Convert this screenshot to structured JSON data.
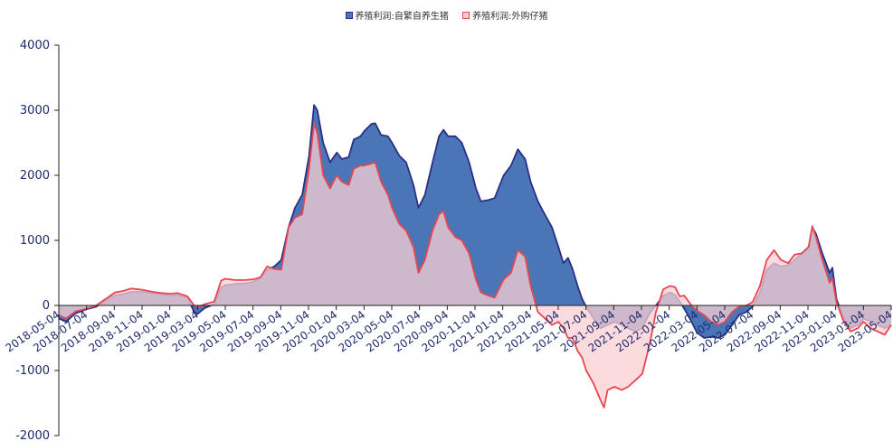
{
  "chart_data": {
    "type": "area",
    "ylim": [
      -2000,
      4000
    ],
    "yticks": [
      -2000,
      -1000,
      0,
      1000,
      2000,
      3000,
      4000
    ],
    "legend_position": "top",
    "grid": false,
    "x_tick_labels": [
      "2018-05-04",
      "2018-07-04",
      "2018-09-04",
      "2018-11-04",
      "2019-01-04",
      "2019-03-04",
      "2019-05-04",
      "2019-07-04",
      "2019-09-04",
      "2019-11-04",
      "2020-01-04",
      "2020-03-04",
      "2020-05-04",
      "2020-07-04",
      "2020-09-04",
      "2020-11-04",
      "2021-01-04",
      "2021-03-04",
      "2021-05-04",
      "2021-07-04",
      "2021-09-04",
      "2021-11-04",
      "2022-01-04",
      "2022-03-04",
      "2022-05-04",
      "2022-07-04",
      "2022-09-04",
      "2022-11-04",
      "2023-01-04",
      "2023-03-04",
      "2023-05-04"
    ],
    "x_start": "2018-05-04",
    "x_end": "2023-05-04",
    "series": [
      {
        "name": "养殖利润:自繁自养生猪",
        "color": "#4a76b8",
        "stroke": "#2a2f86",
        "points": [
          [
            "2018-05-04",
            -200
          ],
          [
            "2018-05-20",
            -250
          ],
          [
            "2018-06-10",
            -120
          ],
          [
            "2018-07-04",
            -60
          ],
          [
            "2018-07-25",
            -20
          ],
          [
            "2018-08-15",
            80
          ],
          [
            "2018-09-04",
            160
          ],
          [
            "2018-09-20",
            170
          ],
          [
            "2018-10-10",
            210
          ],
          [
            "2018-11-04",
            210
          ],
          [
            "2018-11-25",
            190
          ],
          [
            "2018-12-15",
            170
          ],
          [
            "2019-01-04",
            150
          ],
          [
            "2019-01-20",
            160
          ],
          [
            "2019-02-10",
            120
          ],
          [
            "2019-02-25",
            -100
          ],
          [
            "2019-03-04",
            -130
          ],
          [
            "2019-03-20",
            -40
          ],
          [
            "2019-04-10",
            20
          ],
          [
            "2019-04-25",
            280
          ],
          [
            "2019-05-04",
            310
          ],
          [
            "2019-05-25",
            330
          ],
          [
            "2019-06-15",
            340
          ],
          [
            "2019-07-04",
            360
          ],
          [
            "2019-07-20",
            420
          ],
          [
            "2019-08-04",
            550
          ],
          [
            "2019-08-20",
            600
          ],
          [
            "2019-09-04",
            700
          ],
          [
            "2019-09-20",
            1200
          ],
          [
            "2019-10-04",
            1500
          ],
          [
            "2019-10-20",
            1700
          ],
          [
            "2019-11-04",
            2300
          ],
          [
            "2019-11-15",
            3080
          ],
          [
            "2019-11-22",
            3000
          ],
          [
            "2019-12-05",
            2500
          ],
          [
            "2019-12-20",
            2200
          ],
          [
            "2020-01-04",
            2350
          ],
          [
            "2020-01-15",
            2250
          ],
          [
            "2020-01-30",
            2280
          ],
          [
            "2020-02-10",
            2550
          ],
          [
            "2020-02-25",
            2600
          ],
          [
            "2020-03-04",
            2680
          ],
          [
            "2020-03-20",
            2790
          ],
          [
            "2020-03-28",
            2800
          ],
          [
            "2020-04-10",
            2620
          ],
          [
            "2020-04-25",
            2600
          ],
          [
            "2020-05-04",
            2500
          ],
          [
            "2020-05-20",
            2300
          ],
          [
            "2020-06-04",
            2200
          ],
          [
            "2020-06-20",
            1850
          ],
          [
            "2020-07-01",
            1500
          ],
          [
            "2020-07-15",
            1700
          ],
          [
            "2020-08-01",
            2200
          ],
          [
            "2020-08-15",
            2600
          ],
          [
            "2020-08-25",
            2700
          ],
          [
            "2020-09-04",
            2600
          ],
          [
            "2020-09-20",
            2600
          ],
          [
            "2020-10-04",
            2500
          ],
          [
            "2020-10-20",
            2200
          ],
          [
            "2020-11-04",
            1800
          ],
          [
            "2020-11-15",
            1600
          ],
          [
            "2020-12-01",
            1620
          ],
          [
            "2020-12-15",
            1650
          ],
          [
            "2021-01-04",
            2000
          ],
          [
            "2021-01-20",
            2150
          ],
          [
            "2021-02-04",
            2400
          ],
          [
            "2021-02-20",
            2250
          ],
          [
            "2021-03-04",
            1900
          ],
          [
            "2021-03-20",
            1600
          ],
          [
            "2021-04-04",
            1400
          ],
          [
            "2021-04-20",
            1200
          ],
          [
            "2021-05-04",
            900
          ],
          [
            "2021-05-15",
            650
          ],
          [
            "2021-05-25",
            730
          ],
          [
            "2021-06-04",
            560
          ],
          [
            "2021-06-15",
            300
          ],
          [
            "2021-06-25",
            100
          ],
          [
            "2021-07-04",
            -20
          ],
          [
            "2021-07-20",
            -200
          ],
          [
            "2021-08-04",
            -350
          ],
          [
            "2021-08-20",
            -300
          ],
          [
            "2021-09-04",
            -250
          ],
          [
            "2021-09-20",
            -300
          ],
          [
            "2021-10-04",
            -350
          ],
          [
            "2021-10-20",
            -400
          ],
          [
            "2021-11-04",
            -350
          ],
          [
            "2021-11-20",
            -120
          ],
          [
            "2021-12-04",
            0
          ],
          [
            "2021-12-20",
            150
          ],
          [
            "2022-01-04",
            200
          ],
          [
            "2022-01-15",
            160
          ],
          [
            "2022-01-25",
            60
          ],
          [
            "2022-02-04",
            -50
          ],
          [
            "2022-02-20",
            -250
          ],
          [
            "2022-03-04",
            -420
          ],
          [
            "2022-03-20",
            -500
          ],
          [
            "2022-04-04",
            -480
          ],
          [
            "2022-04-20",
            -500
          ],
          [
            "2022-05-04",
            -450
          ],
          [
            "2022-05-20",
            -300
          ],
          [
            "2022-06-04",
            -150
          ],
          [
            "2022-06-20",
            -100
          ],
          [
            "2022-07-04",
            -20
          ],
          [
            "2022-07-20",
            200
          ],
          [
            "2022-08-04",
            550
          ],
          [
            "2022-08-20",
            650
          ],
          [
            "2022-09-04",
            600
          ],
          [
            "2022-09-20",
            620
          ],
          [
            "2022-10-04",
            700
          ],
          [
            "2022-10-20",
            800
          ],
          [
            "2022-11-04",
            900
          ],
          [
            "2022-11-12",
            1200
          ],
          [
            "2022-11-20",
            1100
          ],
          [
            "2022-12-04",
            800
          ],
          [
            "2022-12-20",
            500
          ],
          [
            "2022-12-26",
            580
          ],
          [
            "2023-01-04",
            100
          ],
          [
            "2023-01-20",
            -200
          ],
          [
            "2023-02-04",
            -350
          ],
          [
            "2023-02-20",
            -300
          ],
          [
            "2023-03-04",
            -200
          ],
          [
            "2023-03-20",
            -250
          ],
          [
            "2023-04-04",
            -300
          ],
          [
            "2023-04-20",
            -350
          ],
          [
            "2023-05-04",
            -300
          ]
        ]
      },
      {
        "name": "养殖利润:外购仔猪",
        "color": "#f9cfd3",
        "stroke": "#e8474f",
        "points": [
          [
            "2018-05-04",
            -150
          ],
          [
            "2018-05-20",
            -200
          ],
          [
            "2018-06-10",
            -90
          ],
          [
            "2018-07-04",
            -50
          ],
          [
            "2018-07-25",
            0
          ],
          [
            "2018-08-15",
            100
          ],
          [
            "2018-09-04",
            200
          ],
          [
            "2018-09-20",
            220
          ],
          [
            "2018-10-10",
            260
          ],
          [
            "2018-11-04",
            240
          ],
          [
            "2018-11-25",
            210
          ],
          [
            "2018-12-15",
            190
          ],
          [
            "2019-01-04",
            180
          ],
          [
            "2019-01-20",
            190
          ],
          [
            "2019-02-10",
            140
          ],
          [
            "2019-02-25",
            0
          ],
          [
            "2019-03-04",
            -30
          ],
          [
            "2019-03-20",
            20
          ],
          [
            "2019-04-10",
            60
          ],
          [
            "2019-04-25",
            380
          ],
          [
            "2019-05-04",
            410
          ],
          [
            "2019-05-25",
            390
          ],
          [
            "2019-06-15",
            390
          ],
          [
            "2019-07-04",
            400
          ],
          [
            "2019-07-20",
            430
          ],
          [
            "2019-08-04",
            600
          ],
          [
            "2019-08-20",
            560
          ],
          [
            "2019-09-04",
            550
          ],
          [
            "2019-09-20",
            1200
          ],
          [
            "2019-10-04",
            1350
          ],
          [
            "2019-10-20",
            1400
          ],
          [
            "2019-11-04",
            2100
          ],
          [
            "2019-11-15",
            2800
          ],
          [
            "2019-11-22",
            2650
          ],
          [
            "2019-12-05",
            2000
          ],
          [
            "2019-12-20",
            1800
          ],
          [
            "2020-01-04",
            2000
          ],
          [
            "2020-01-15",
            1900
          ],
          [
            "2020-01-30",
            1850
          ],
          [
            "2020-02-10",
            2100
          ],
          [
            "2020-02-25",
            2150
          ],
          [
            "2020-03-04",
            2150
          ],
          [
            "2020-03-20",
            2180
          ],
          [
            "2020-03-28",
            2200
          ],
          [
            "2020-04-10",
            1900
          ],
          [
            "2020-04-25",
            1700
          ],
          [
            "2020-05-04",
            1500
          ],
          [
            "2020-05-20",
            1250
          ],
          [
            "2020-06-04",
            1150
          ],
          [
            "2020-06-20",
            900
          ],
          [
            "2020-07-01",
            500
          ],
          [
            "2020-07-15",
            700
          ],
          [
            "2020-08-01",
            1150
          ],
          [
            "2020-08-15",
            1400
          ],
          [
            "2020-08-25",
            1450
          ],
          [
            "2020-09-04",
            1200
          ],
          [
            "2020-09-20",
            1050
          ],
          [
            "2020-10-04",
            1000
          ],
          [
            "2020-10-20",
            800
          ],
          [
            "2020-11-04",
            400
          ],
          [
            "2020-11-15",
            200
          ],
          [
            "2020-12-01",
            150
          ],
          [
            "2020-12-15",
            120
          ],
          [
            "2021-01-04",
            400
          ],
          [
            "2021-01-20",
            500
          ],
          [
            "2021-02-04",
            850
          ],
          [
            "2021-02-20",
            750
          ],
          [
            "2021-03-04",
            300
          ],
          [
            "2021-03-20",
            -100
          ],
          [
            "2021-04-04",
            -200
          ],
          [
            "2021-04-20",
            -300
          ],
          [
            "2021-05-04",
            -250
          ],
          [
            "2021-05-15",
            -350
          ],
          [
            "2021-05-25",
            -500
          ],
          [
            "2021-06-04",
            -500
          ],
          [
            "2021-06-15",
            -700
          ],
          [
            "2021-06-25",
            -800
          ],
          [
            "2021-07-04",
            -1000
          ],
          [
            "2021-07-20",
            -1200
          ],
          [
            "2021-08-04",
            -1450
          ],
          [
            "2021-08-12",
            -1570
          ],
          [
            "2021-08-20",
            -1300
          ],
          [
            "2021-09-04",
            -1250
          ],
          [
            "2021-09-20",
            -1300
          ],
          [
            "2021-10-04",
            -1250
          ],
          [
            "2021-10-20",
            -1150
          ],
          [
            "2021-11-04",
            -1050
          ],
          [
            "2021-11-20",
            -600
          ],
          [
            "2021-12-04",
            -100
          ],
          [
            "2021-12-20",
            250
          ],
          [
            "2022-01-04",
            300
          ],
          [
            "2022-01-15",
            280
          ],
          [
            "2022-01-25",
            140
          ],
          [
            "2022-02-04",
            150
          ],
          [
            "2022-02-20",
            0
          ],
          [
            "2022-03-04",
            -80
          ],
          [
            "2022-03-20",
            -150
          ],
          [
            "2022-04-04",
            -250
          ],
          [
            "2022-04-20",
            -300
          ],
          [
            "2022-05-04",
            -250
          ],
          [
            "2022-05-20",
            -100
          ],
          [
            "2022-06-04",
            -20
          ],
          [
            "2022-06-20",
            0
          ],
          [
            "2022-07-04",
            50
          ],
          [
            "2022-07-20",
            300
          ],
          [
            "2022-08-04",
            700
          ],
          [
            "2022-08-20",
            850
          ],
          [
            "2022-09-04",
            700
          ],
          [
            "2022-09-20",
            650
          ],
          [
            "2022-10-04",
            780
          ],
          [
            "2022-10-20",
            800
          ],
          [
            "2022-11-04",
            900
          ],
          [
            "2022-11-12",
            1220
          ],
          [
            "2022-11-20",
            1050
          ],
          [
            "2022-12-04",
            700
          ],
          [
            "2022-12-20",
            350
          ],
          [
            "2022-12-26",
            420
          ],
          [
            "2023-01-04",
            50
          ],
          [
            "2023-01-20",
            -250
          ],
          [
            "2023-02-04",
            -400
          ],
          [
            "2023-02-20",
            -350
          ],
          [
            "2023-03-04",
            -250
          ],
          [
            "2023-03-20",
            -350
          ],
          [
            "2023-04-04",
            -400
          ],
          [
            "2023-04-20",
            -450
          ],
          [
            "2023-05-04",
            -300
          ]
        ]
      }
    ]
  }
}
